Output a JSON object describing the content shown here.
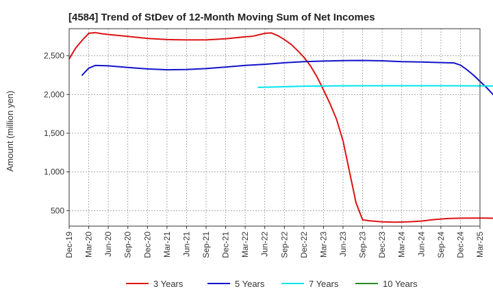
{
  "chart_data": {
    "type": "line",
    "title": "[4584]  Trend of StDev of 12-Month Moving Sum of Net Incomes",
    "ylabel": "Amount (million yen)",
    "xlabel": "",
    "ylim": [
      300,
      2850
    ],
    "yticks": [
      500,
      1000,
      1500,
      2000,
      2500
    ],
    "ytick_labels": [
      "500",
      "1,000",
      "1,500",
      "2,000",
      "2,500"
    ],
    "x_tick_labels": [
      "Dec-19",
      "Mar-20",
      "Jun-20",
      "Sep-20",
      "Dec-20",
      "Mar-21",
      "Jun-21",
      "Sep-21",
      "Dec-21",
      "Mar-22",
      "Jun-22",
      "Sep-22",
      "Dec-22",
      "Mar-23",
      "Jun-23",
      "Sep-23",
      "Dec-23",
      "Mar-24",
      "Jun-24",
      "Sep-24",
      "Dec-24",
      "Mar-25"
    ],
    "grid": true,
    "legend_position": "bottom",
    "series": [
      {
        "name": "3 Years",
        "color": "#dd1111",
        "points": [
          [
            0,
            2460
          ],
          [
            1,
            2600
          ],
          [
            2,
            2700
          ],
          [
            3,
            2790
          ],
          [
            4,
            2800
          ],
          [
            5,
            2785
          ],
          [
            6,
            2775
          ],
          [
            9,
            2750
          ],
          [
            12,
            2725
          ],
          [
            15,
            2710
          ],
          [
            18,
            2705
          ],
          [
            21,
            2705
          ],
          [
            24,
            2720
          ],
          [
            27,
            2745
          ],
          [
            28,
            2750
          ],
          [
            29,
            2770
          ],
          [
            30,
            2790
          ],
          [
            31,
            2795
          ],
          [
            32,
            2760
          ],
          [
            33,
            2710
          ],
          [
            34,
            2650
          ],
          [
            35,
            2570
          ],
          [
            36,
            2480
          ],
          [
            37,
            2370
          ],
          [
            38,
            2230
          ],
          [
            39,
            2060
          ],
          [
            40,
            1880
          ],
          [
            41,
            1680
          ],
          [
            42,
            1400
          ],
          [
            43,
            1000
          ],
          [
            44,
            600
          ],
          [
            45,
            380
          ],
          [
            46,
            370
          ],
          [
            48,
            355
          ],
          [
            50,
            350
          ],
          [
            52,
            355
          ],
          [
            54,
            365
          ],
          [
            56,
            385
          ],
          [
            58,
            398
          ],
          [
            60,
            402
          ],
          [
            62,
            404
          ],
          [
            64,
            404
          ],
          [
            66,
            400
          ],
          [
            68,
            395
          ]
        ]
      },
      {
        "name": "5 Years",
        "color": "#1111cc",
        "points": [
          [
            2,
            2250
          ],
          [
            3,
            2340
          ],
          [
            4,
            2375
          ],
          [
            6,
            2370
          ],
          [
            9,
            2350
          ],
          [
            12,
            2330
          ],
          [
            15,
            2320
          ],
          [
            18,
            2322
          ],
          [
            21,
            2335
          ],
          [
            24,
            2355
          ],
          [
            27,
            2375
          ],
          [
            30,
            2390
          ],
          [
            33,
            2410
          ],
          [
            36,
            2425
          ],
          [
            39,
            2432
          ],
          [
            42,
            2438
          ],
          [
            45,
            2440
          ],
          [
            48,
            2435
          ],
          [
            51,
            2425
          ],
          [
            54,
            2420
          ],
          [
            57,
            2412
          ],
          [
            59,
            2408
          ],
          [
            60,
            2380
          ],
          [
            61,
            2320
          ],
          [
            62,
            2250
          ],
          [
            63,
            2170
          ],
          [
            64,
            2090
          ],
          [
            65,
            2000
          ],
          [
            66,
            1890
          ],
          [
            67,
            1760
          ],
          [
            68,
            1560
          ]
        ]
      },
      {
        "name": "7 Years",
        "color": "#00e5ee",
        "points": [
          [
            29,
            2092
          ],
          [
            33,
            2100
          ],
          [
            36,
            2108
          ],
          [
            42,
            2112
          ],
          [
            48,
            2113
          ],
          [
            54,
            2113
          ],
          [
            60,
            2112
          ],
          [
            64,
            2111
          ],
          [
            68,
            2110
          ]
        ]
      },
      {
        "name": "10 Years",
        "color": "#228b22",
        "points": []
      }
    ]
  }
}
